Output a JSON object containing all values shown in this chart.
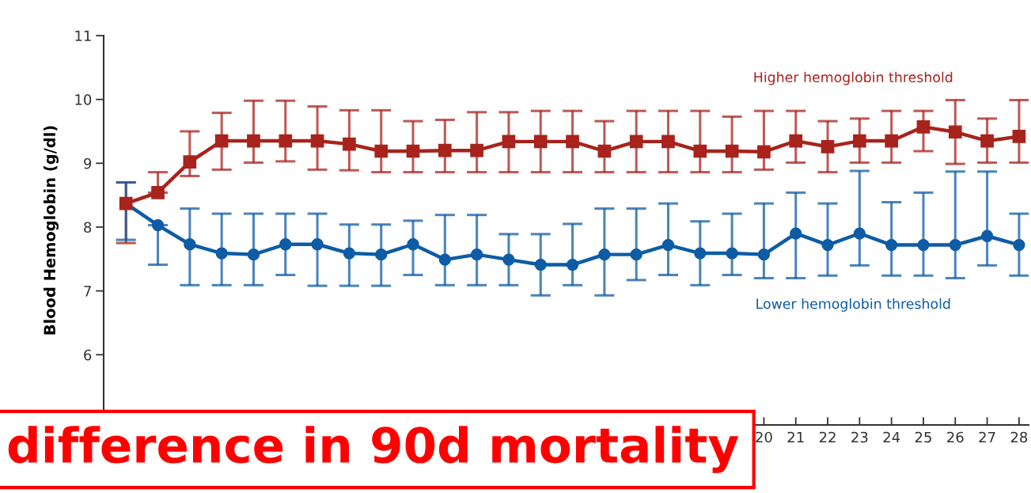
{
  "chart_data": {
    "type": "line",
    "ylabel": "Blood Hemoglobin (g/dl)",
    "x": [
      0,
      1,
      2,
      3,
      4,
      5,
      6,
      7,
      8,
      9,
      10,
      11,
      12,
      13,
      14,
      15,
      16,
      17,
      18,
      19,
      20,
      21,
      22,
      23,
      24,
      25,
      26,
      27,
      28
    ],
    "xlim": [
      -0.7,
      28.3
    ],
    "xticks": [
      20,
      21,
      22,
      23,
      24,
      25,
      26,
      27,
      28
    ],
    "ylim": [
      4.9,
      11
    ],
    "yticks": [
      6,
      7,
      8,
      9,
      10,
      11
    ],
    "grid": false,
    "legend": false,
    "line_style": "solid",
    "series": [
      {
        "name": "Higher hemoglobin threshold",
        "color": "#a8231c",
        "marker": "square",
        "values": [
          8.37,
          8.54,
          9.02,
          9.35,
          9.35,
          9.35,
          9.35,
          9.3,
          9.19,
          9.19,
          9.2,
          9.2,
          9.34,
          9.34,
          9.34,
          9.19,
          9.34,
          9.34,
          9.19,
          9.19,
          9.18,
          9.35,
          9.26,
          9.35,
          9.35,
          9.57,
          9.49,
          9.35,
          9.42
        ],
        "errors": [
          [
            7.75,
            8.7
          ],
          [
            8.54,
            8.86
          ],
          [
            8.8,
            9.5
          ],
          [
            8.9,
            9.79
          ],
          [
            9.01,
            9.98
          ],
          [
            9.03,
            9.98
          ],
          [
            8.9,
            9.89
          ],
          [
            8.89,
            9.83
          ],
          [
            8.86,
            9.83
          ],
          [
            8.86,
            9.66
          ],
          [
            8.86,
            9.68
          ],
          [
            8.86,
            9.8
          ],
          [
            8.86,
            9.8
          ],
          [
            8.86,
            9.82
          ],
          [
            8.86,
            9.82
          ],
          [
            8.86,
            9.66
          ],
          [
            8.86,
            9.82
          ],
          [
            8.86,
            9.82
          ],
          [
            8.86,
            9.82
          ],
          [
            8.86,
            9.73
          ],
          [
            8.9,
            9.82
          ],
          [
            9.01,
            9.82
          ],
          [
            8.86,
            9.66
          ],
          [
            9.01,
            9.7
          ],
          [
            9.01,
            9.82
          ],
          [
            9.19,
            9.82
          ],
          [
            8.99,
            9.99
          ],
          [
            9.01,
            9.7
          ],
          [
            9.01,
            9.99
          ]
        ]
      },
      {
        "name": "Lower hemoglobin threshold",
        "color": "#0d5ca5",
        "marker": "circle",
        "values": [
          8.37,
          8.03,
          7.73,
          7.59,
          7.57,
          7.73,
          7.73,
          7.59,
          7.57,
          7.73,
          7.49,
          7.57,
          7.49,
          7.41,
          7.41,
          7.57,
          7.57,
          7.72,
          7.59,
          7.59,
          7.57,
          7.9,
          7.72,
          7.9,
          7.72,
          7.72,
          7.72,
          7.86,
          7.72
        ],
        "errors": [
          [
            7.8,
            8.7
          ],
          [
            7.41,
            8.03
          ],
          [
            7.09,
            8.29
          ],
          [
            7.09,
            8.21
          ],
          [
            7.09,
            8.21
          ],
          [
            7.25,
            8.21
          ],
          [
            7.08,
            8.21
          ],
          [
            7.08,
            8.04
          ],
          [
            7.08,
            8.04
          ],
          [
            7.25,
            8.1
          ],
          [
            7.09,
            8.19
          ],
          [
            7.09,
            8.19
          ],
          [
            7.09,
            7.89
          ],
          [
            6.93,
            7.89
          ],
          [
            7.09,
            8.05
          ],
          [
            6.93,
            8.29
          ],
          [
            7.17,
            8.29
          ],
          [
            7.25,
            8.37
          ],
          [
            7.09,
            8.09
          ],
          [
            7.25,
            8.21
          ],
          [
            7.2,
            8.37
          ],
          [
            7.2,
            8.54
          ],
          [
            7.24,
            8.37
          ],
          [
            7.4,
            8.88
          ],
          [
            7.24,
            8.39
          ],
          [
            7.24,
            8.54
          ],
          [
            7.2,
            8.87
          ],
          [
            7.4,
            8.87
          ],
          [
            7.24,
            8.21
          ]
        ]
      }
    ],
    "annotations": [
      "difference in 90d mortality"
    ]
  }
}
